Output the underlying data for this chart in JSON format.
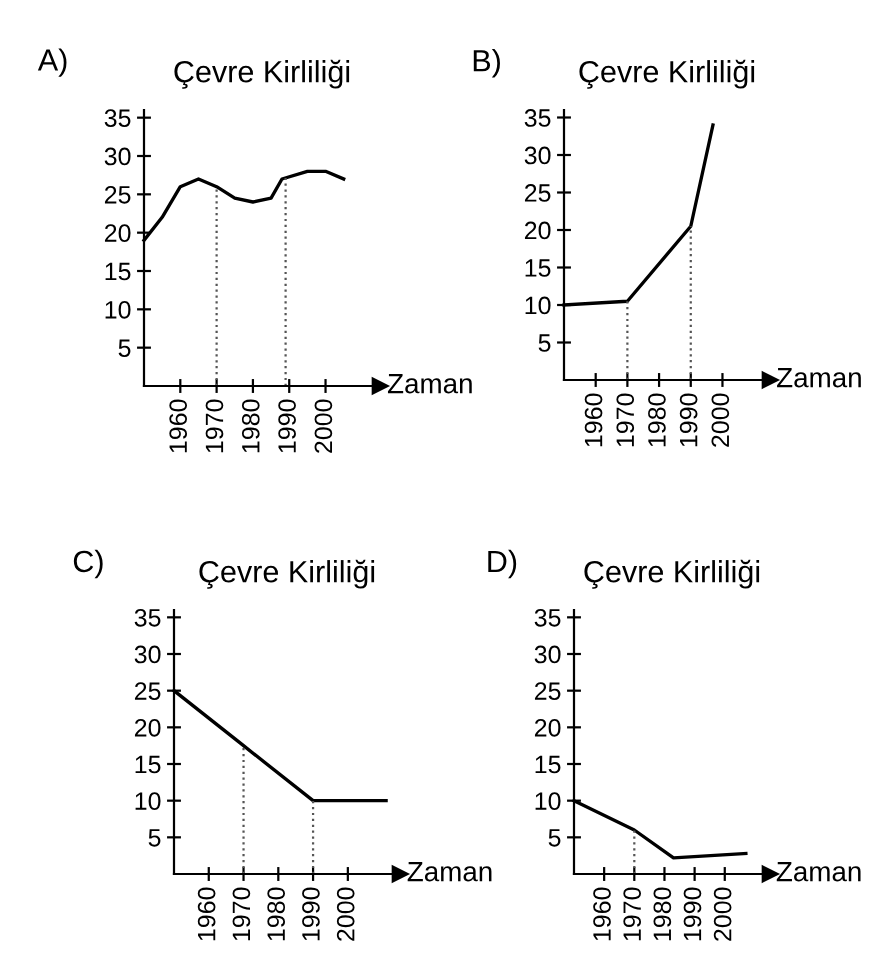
{
  "chart_data": [
    {
      "type": "line",
      "title": "Çevre Kirliliği",
      "xlabel": "Zaman",
      "annotations": [
        "A)"
      ],
      "x": [
        1950,
        1955,
        1960,
        1965,
        1970,
        1975,
        1980,
        1985,
        1988,
        1995,
        2000,
        2005
      ],
      "series": [
        {
          "color": "#000000",
          "values": [
            19,
            22,
            26,
            27,
            26,
            24.5,
            24,
            24.5,
            27,
            28,
            28,
            27
          ]
        }
      ],
      "xlim": [
        1950,
        2015
      ],
      "ylim": [
        0,
        36
      ],
      "xticks": [
        1960,
        1970,
        1980,
        1990,
        2000
      ],
      "yticks": [
        5,
        10,
        15,
        20,
        25,
        30,
        35
      ],
      "grid": false,
      "legend": false,
      "marker": "none",
      "line_style": "solid",
      "ref_lines": [
        {
          "axis": "x",
          "value": 1970,
          "line_style": "dotted"
        },
        {
          "axis": "x",
          "value": 1989,
          "line_style": "dotted"
        }
      ]
    },
    {
      "type": "line",
      "title": "Çevre Kirliliği",
      "xlabel": "Zaman",
      "annotations": [
        "B)"
      ],
      "x": [
        1950,
        1970,
        1990,
        1997
      ],
      "series": [
        {
          "color": "#000000",
          "values": [
            10,
            10.5,
            20.5,
            34
          ]
        }
      ],
      "xlim": [
        1950,
        2015
      ],
      "ylim": [
        0,
        36
      ],
      "xticks": [
        1960,
        1970,
        1980,
        1990,
        2000
      ],
      "yticks": [
        5,
        10,
        15,
        20,
        25,
        30,
        35
      ],
      "grid": false,
      "legend": false,
      "marker": "none",
      "line_style": "solid",
      "ref_lines": [
        {
          "axis": "x",
          "value": 1970,
          "line_style": "dotted"
        },
        {
          "axis": "x",
          "value": 1990,
          "line_style": "dotted"
        }
      ]
    },
    {
      "type": "line",
      "title": "Çevre Kirliliği",
      "xlabel": "Zaman",
      "annotations": [
        "C)"
      ],
      "x": [
        1950,
        1970,
        1990,
        2011
      ],
      "series": [
        {
          "color": "#000000",
          "values": [
            25,
            17.5,
            10,
            10
          ]
        }
      ],
      "xlim": [
        1950,
        2015
      ],
      "ylim": [
        0,
        36
      ],
      "xticks": [
        1960,
        1970,
        1980,
        1990,
        2000
      ],
      "yticks": [
        5,
        10,
        15,
        20,
        25,
        30,
        35
      ],
      "grid": false,
      "legend": false,
      "marker": "none",
      "line_style": "solid",
      "ref_lines": [
        {
          "axis": "x",
          "value": 1970,
          "line_style": "dotted"
        },
        {
          "axis": "x",
          "value": 1990,
          "line_style": "dotted"
        }
      ]
    },
    {
      "type": "line",
      "title": "Çevre Kirliliği",
      "xlabel": "Zaman",
      "annotations": [
        "D)"
      ],
      "x": [
        1950,
        1970,
        1983,
        2007
      ],
      "series": [
        {
          "color": "#000000",
          "values": [
            10,
            6,
            2.2,
            2.8
          ]
        }
      ],
      "xlim": [
        1950,
        2015
      ],
      "ylim": [
        0,
        36
      ],
      "xticks": [
        1960,
        1970,
        1980,
        1990,
        2000
      ],
      "yticks": [
        5,
        10,
        15,
        20,
        25,
        30,
        35
      ],
      "grid": false,
      "legend": false,
      "marker": "none",
      "line_style": "solid",
      "ref_lines": [
        {
          "axis": "x",
          "value": 1970,
          "line_style": "dotted"
        }
      ]
    }
  ]
}
